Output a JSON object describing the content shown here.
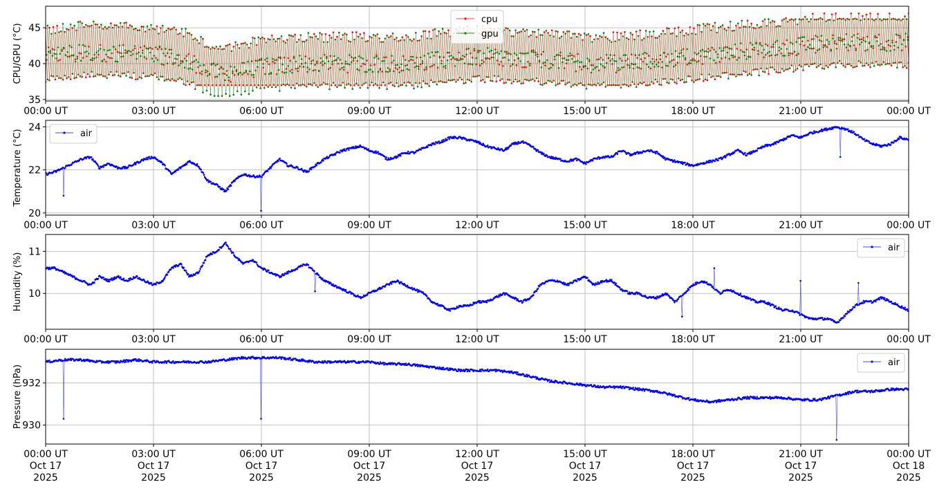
{
  "colors": {
    "cpu": "#ff0000",
    "gpu": "#008000",
    "air": "#0000ff",
    "grid": "#b0b0b0"
  },
  "chart_data": [
    {
      "type": "line",
      "ylabel": "CPU/GPU (°C)",
      "ylim": [
        34.8,
        48.0
      ],
      "yticks": [
        35,
        40,
        45
      ],
      "xlim_hours": [
        0,
        24
      ],
      "grid": true,
      "legend_position": "top-center",
      "series": [
        {
          "name": "cpu",
          "color": "#ff0000",
          "note_band": [
            37.0,
            47.0
          ],
          "trend_hours": [
            0,
            1,
            2,
            3,
            4,
            4.5,
            5,
            6,
            7,
            8,
            9,
            10,
            11,
            12,
            13,
            14,
            15,
            16,
            17,
            18,
            19,
            20,
            21,
            22,
            23,
            24
          ],
          "trend_values": [
            41,
            41.5,
            41.5,
            41.3,
            40.5,
            39,
            38.5,
            39.5,
            40,
            40,
            40,
            40,
            40.5,
            41,
            40.8,
            40.5,
            40,
            40,
            40.5,
            41,
            41.5,
            42,
            42.5,
            43,
            43,
            43
          ]
        },
        {
          "name": "gpu",
          "color": "#008000",
          "note_band": [
            35.5,
            46.2
          ],
          "trend_hours": [
            0,
            1,
            2,
            3,
            4,
            4.5,
            5,
            6,
            7,
            8,
            9,
            10,
            11,
            12,
            13,
            14,
            15,
            16,
            17,
            18,
            19,
            20,
            21,
            22,
            23,
            24
          ],
          "trend_values": [
            41,
            41.5,
            41.5,
            41.3,
            40.5,
            39,
            38.5,
            39.5,
            40,
            40,
            40,
            40,
            40.5,
            41,
            40.8,
            40.5,
            40,
            40,
            40.5,
            41,
            41.5,
            42,
            42.5,
            43,
            43,
            43
          ]
        }
      ]
    },
    {
      "type": "line",
      "ylabel": "Temperature (°C)",
      "ylim": [
        19.9,
        24.3
      ],
      "yticks": [
        20,
        22,
        24
      ],
      "xlim_hours": [
        0,
        24
      ],
      "grid": true,
      "legend_position": "top-left",
      "series": [
        {
          "name": "air",
          "color": "#0000ff",
          "hours": [
            0,
            0.25,
            0.5,
            0.75,
            1,
            1.25,
            1.5,
            1.75,
            2,
            2.25,
            2.5,
            2.75,
            3,
            3.25,
            3.5,
            3.75,
            4,
            4.25,
            4.5,
            4.75,
            5,
            5.25,
            5.5,
            5.75,
            6,
            6.25,
            6.5,
            6.75,
            7,
            7.25,
            7.5,
            7.75,
            8,
            8.25,
            8.5,
            8.75,
            9,
            9.25,
            9.5,
            9.75,
            10,
            10.25,
            10.5,
            10.75,
            11,
            11.25,
            11.5,
            11.75,
            12,
            12.25,
            12.5,
            12.75,
            13,
            13.25,
            13.5,
            13.75,
            14,
            14.25,
            14.5,
            14.75,
            15,
            15.25,
            15.5,
            15.75,
            16,
            16.25,
            16.5,
            16.75,
            17,
            17.25,
            17.5,
            17.75,
            18,
            18.25,
            18.5,
            18.75,
            19,
            19.25,
            19.5,
            19.75,
            20,
            20.25,
            20.5,
            20.75,
            21,
            21.25,
            21.5,
            21.75,
            22,
            22.25,
            22.5,
            22.75,
            23,
            23.25,
            23.5,
            23.75,
            24
          ],
          "values": [
            21.8,
            21.9,
            22.1,
            22.3,
            22.5,
            22.6,
            22.1,
            22.3,
            22.1,
            22.1,
            22.3,
            22.5,
            22.6,
            22.3,
            21.8,
            22.1,
            22.4,
            22.2,
            21.5,
            21.3,
            21.0,
            21.5,
            21.8,
            21.7,
            21.7,
            22.1,
            22.5,
            22.2,
            22.1,
            21.9,
            22.2,
            22.5,
            22.7,
            22.9,
            23.0,
            23.1,
            22.9,
            22.8,
            22.5,
            22.6,
            22.8,
            22.8,
            23.0,
            23.2,
            23.3,
            23.5,
            23.5,
            23.4,
            23.3,
            23.1,
            23.0,
            22.9,
            23.2,
            23.3,
            23.1,
            22.8,
            22.6,
            22.5,
            22.4,
            22.5,
            22.3,
            22.5,
            22.6,
            22.6,
            22.9,
            22.7,
            22.8,
            22.9,
            22.8,
            22.5,
            22.4,
            22.3,
            22.2,
            22.3,
            22.4,
            22.5,
            22.7,
            22.9,
            22.7,
            22.9,
            23.1,
            23.2,
            23.4,
            23.6,
            23.5,
            23.7,
            23.8,
            23.9,
            24.0,
            23.9,
            23.7,
            23.4,
            23.2,
            23.1,
            23.2,
            23.5,
            23.4
          ],
          "dips": [
            [
              0.5,
              20.8
            ],
            [
              6.0,
              20.1
            ],
            [
              22.1,
              22.6
            ]
          ]
        }
      ]
    },
    {
      "type": "line",
      "ylabel": "Humidity (%)",
      "ylim": [
        9.15,
        11.4
      ],
      "yticks": [
        10,
        11
      ],
      "xlim_hours": [
        0,
        24
      ],
      "grid": true,
      "legend_position": "top-right",
      "series": [
        {
          "name": "air",
          "color": "#0000ff",
          "hours": [
            0,
            0.25,
            0.5,
            0.75,
            1,
            1.25,
            1.5,
            1.75,
            2,
            2.25,
            2.5,
            2.75,
            3,
            3.25,
            3.5,
            3.75,
            4,
            4.25,
            4.5,
            4.75,
            5,
            5.25,
            5.5,
            5.75,
            6,
            6.25,
            6.5,
            6.75,
            7,
            7.25,
            7.5,
            7.75,
            8,
            8.25,
            8.5,
            8.75,
            9,
            9.25,
            9.5,
            9.75,
            10,
            10.25,
            10.5,
            10.75,
            11,
            11.25,
            11.5,
            11.75,
            12,
            12.25,
            12.5,
            12.75,
            13,
            13.25,
            13.5,
            13.75,
            14,
            14.25,
            14.5,
            14.75,
            15,
            15.25,
            15.5,
            15.75,
            16,
            16.25,
            16.5,
            16.75,
            17,
            17.25,
            17.5,
            17.75,
            18,
            18.25,
            18.5,
            18.75,
            19,
            19.25,
            19.5,
            19.75,
            20,
            20.25,
            20.5,
            20.75,
            21,
            21.25,
            21.5,
            21.75,
            22,
            22.25,
            22.5,
            22.75,
            23,
            23.25,
            23.5,
            23.75,
            24
          ],
          "values": [
            10.6,
            10.6,
            10.5,
            10.4,
            10.3,
            10.2,
            10.4,
            10.3,
            10.4,
            10.3,
            10.4,
            10.3,
            10.2,
            10.3,
            10.6,
            10.7,
            10.4,
            10.5,
            10.9,
            11.0,
            11.2,
            10.9,
            10.7,
            10.8,
            10.6,
            10.5,
            10.4,
            10.5,
            10.6,
            10.7,
            10.5,
            10.3,
            10.2,
            10.1,
            10.0,
            9.9,
            10.0,
            10.1,
            10.2,
            10.3,
            10.2,
            10.1,
            10.0,
            9.8,
            9.7,
            9.6,
            9.7,
            9.7,
            9.8,
            9.8,
            9.9,
            10.0,
            9.9,
            9.8,
            9.9,
            10.2,
            10.3,
            10.3,
            10.2,
            10.3,
            10.4,
            10.2,
            10.3,
            10.3,
            10.1,
            10.0,
            10.0,
            9.9,
            9.9,
            10.0,
            9.8,
            10.0,
            10.2,
            10.3,
            10.2,
            10.0,
            10.1,
            10.0,
            9.9,
            9.8,
            9.8,
            9.7,
            9.6,
            9.6,
            9.5,
            9.4,
            9.4,
            9.4,
            9.3,
            9.5,
            9.7,
            9.8,
            9.8,
            9.9,
            9.8,
            9.7,
            9.6
          ],
          "spikes": [
            [
              7.5,
              10.05
            ],
            [
              17.7,
              9.45
            ],
            [
              18.6,
              10.6
            ],
            [
              21.0,
              10.3
            ],
            [
              22.6,
              10.25
            ]
          ]
        }
      ]
    },
    {
      "type": "line",
      "ylabel": "Pressure (hPa)",
      "ylim": [
        929.1,
        933.6
      ],
      "yticks": [
        930,
        932
      ],
      "xlim_hours": [
        0,
        24
      ],
      "grid": true,
      "legend_position": "top-right",
      "xtick_labels": [
        "00:00 UT\nOct 17\n2025",
        "03:00 UT\nOct 17\n2025",
        "06:00 UT\nOct 17\n2025",
        "09:00 UT\nOct 17\n2025",
        "12:00 UT\nOct 17\n2025",
        "15:00 UT\nOct 17\n2025",
        "18:00 UT\nOct 17\n2025",
        "21:00 UT\nOct 17\n2025",
        "00:00 UT\nOct 18\n2025"
      ],
      "series": [
        {
          "name": "air",
          "color": "#0000ff",
          "hours": [
            0,
            0.5,
            1,
            1.5,
            2,
            2.5,
            3,
            3.5,
            4,
            4.5,
            5,
            5.5,
            6,
            6.5,
            7,
            7.5,
            8,
            8.5,
            9,
            9.5,
            10,
            10.5,
            11,
            11.5,
            12,
            12.5,
            13,
            13.5,
            14,
            14.5,
            15,
            15.5,
            16,
            16.5,
            17,
            17.5,
            18,
            18.5,
            19,
            19.5,
            20,
            20.5,
            21,
            21.5,
            22,
            22.5,
            23,
            23.5,
            24
          ],
          "values": [
            933.0,
            933.1,
            933.1,
            933.0,
            933.0,
            933.1,
            933.0,
            933.0,
            933.0,
            933.0,
            933.1,
            933.2,
            933.2,
            933.2,
            933.1,
            933.0,
            933.0,
            933.0,
            933.0,
            932.9,
            932.9,
            932.8,
            932.7,
            932.6,
            932.6,
            932.6,
            932.5,
            932.3,
            932.1,
            932.0,
            931.9,
            931.8,
            931.8,
            931.7,
            931.6,
            931.4,
            931.2,
            931.1,
            931.2,
            931.3,
            931.3,
            931.3,
            931.2,
            931.2,
            931.4,
            931.6,
            931.6,
            931.7,
            931.7
          ],
          "dips": [
            [
              0.5,
              930.3
            ],
            [
              6.0,
              930.3
            ],
            [
              22.0,
              929.3
            ]
          ]
        }
      ]
    }
  ],
  "x_axis": {
    "tick_labels_short": [
      "00:00 UT",
      "03:00 UT",
      "06:00 UT",
      "09:00 UT",
      "12:00 UT",
      "15:00 UT",
      "18:00 UT",
      "21:00 UT",
      "00:00 UT"
    ]
  }
}
